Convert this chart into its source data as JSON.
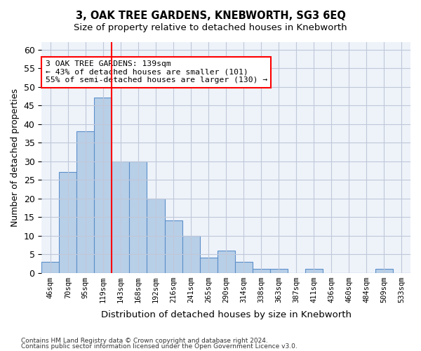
{
  "title_line1": "3, OAK TREE GARDENS, KNEBWORTH, SG3 6EQ",
  "subtitle": "Size of property relative to detached houses in Knebworth",
  "xlabel": "Distribution of detached houses by size in Knebworth",
  "ylabel": "Number of detached properties",
  "bar_labels": [
    "46sqm",
    "70sqm",
    "95sqm",
    "119sqm",
    "143sqm",
    "168sqm",
    "192sqm",
    "216sqm",
    "241sqm",
    "265sqm",
    "290sqm",
    "314sqm",
    "338sqm",
    "363sqm",
    "387sqm",
    "411sqm",
    "436sqm",
    "460sqm",
    "484sqm",
    "509sqm",
    "533sqm"
  ],
  "bar_values": [
    3,
    27,
    38,
    47,
    30,
    30,
    20,
    14,
    10,
    4,
    6,
    3,
    1,
    1,
    0,
    1,
    0,
    0,
    0,
    1,
    0
  ],
  "bar_color": "#b8cfe8",
  "bar_edge_color": "#5b8fc9",
  "background_color": "#eef3fa",
  "grid_color": "#c0c8d8",
  "vline_color": "red",
  "annotation_text": "3 OAK TREE GARDENS: 139sqm\n← 43% of detached houses are smaller (101)\n55% of semi-detached houses are larger (130) →",
  "annotation_box_color": "white",
  "annotation_box_edge": "red",
  "ylim": [
    0,
    62
  ],
  "yticks": [
    0,
    5,
    10,
    15,
    20,
    25,
    30,
    35,
    40,
    45,
    50,
    55,
    60
  ],
  "footnote1": "Contains HM Land Registry data © Crown copyright and database right 2024.",
  "footnote2": "Contains public sector information licensed under the Open Government Licence v3.0."
}
